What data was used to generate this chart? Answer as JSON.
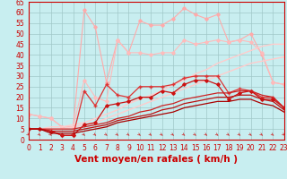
{
  "xlabel": "Vent moyen/en rafales ( km/h )",
  "background_color": "#c8eef0",
  "grid_color": "#a0c8c8",
  "x_ticks": [
    0,
    1,
    2,
    3,
    4,
    5,
    6,
    7,
    8,
    9,
    10,
    11,
    12,
    13,
    14,
    15,
    16,
    17,
    18,
    19,
    20,
    21,
    22,
    23
  ],
  "y_ticks": [
    0,
    5,
    10,
    15,
    20,
    25,
    30,
    35,
    40,
    45,
    50,
    55,
    60,
    65
  ],
  "ylim": [
    0,
    65
  ],
  "xlim": [
    0,
    23
  ],
  "series": [
    {
      "color": "#ffaaaa",
      "lw": 0.8,
      "marker": "D",
      "markersize": 1.8,
      "values": [
        12,
        11,
        10,
        6,
        6,
        61,
        53,
        27,
        47,
        41,
        56,
        54,
        54,
        57,
        62,
        59,
        57,
        59,
        46,
        47,
        50,
        40,
        27,
        26
      ]
    },
    {
      "color": "#ffbbbb",
      "lw": 0.8,
      "marker": "D",
      "markersize": 1.8,
      "values": [
        12,
        11,
        10,
        6,
        6,
        28,
        20,
        18,
        47,
        41,
        41,
        40,
        41,
        41,
        47,
        45,
        46,
        47,
        46,
        47,
        46,
        41,
        27,
        26
      ]
    },
    {
      "color": "#ffcccc",
      "lw": 1.0,
      "marker": null,
      "markersize": 0,
      "values": [
        5,
        5,
        6,
        6,
        7,
        8,
        10,
        12,
        14,
        17,
        19,
        21,
        23,
        26,
        28,
        31,
        33,
        36,
        38,
        40,
        42,
        44,
        45,
        45
      ]
    },
    {
      "color": "#ffcccc",
      "lw": 1.0,
      "marker": null,
      "markersize": 0,
      "values": [
        5,
        5,
        5,
        5,
        6,
        7,
        8,
        10,
        12,
        14,
        16,
        18,
        20,
        22,
        24,
        26,
        28,
        30,
        32,
        34,
        36,
        37,
        38,
        39
      ]
    },
    {
      "color": "#dd3333",
      "lw": 0.9,
      "marker": "+",
      "markersize": 3,
      "values": [
        5,
        5,
        4,
        2,
        2,
        23,
        16,
        26,
        21,
        20,
        25,
        25,
        25,
        26,
        29,
        30,
        30,
        30,
        22,
        24,
        23,
        20,
        20,
        15
      ]
    },
    {
      "color": "#cc1111",
      "lw": 0.9,
      "marker": "D",
      "markersize": 1.8,
      "values": [
        5,
        5,
        4,
        2,
        2,
        7,
        8,
        16,
        17,
        18,
        20,
        20,
        23,
        22,
        26,
        28,
        28,
        26,
        19,
        22,
        23,
        19,
        19,
        15
      ]
    },
    {
      "color": "#cc2222",
      "lw": 0.9,
      "marker": null,
      "markersize": 0,
      "values": [
        5,
        5,
        5,
        5,
        5,
        6,
        7,
        8,
        10,
        11,
        13,
        14,
        16,
        17,
        19,
        20,
        21,
        22,
        22,
        23,
        23,
        21,
        20,
        15
      ]
    },
    {
      "color": "#bb1111",
      "lw": 0.9,
      "marker": null,
      "markersize": 0,
      "values": [
        5,
        5,
        4,
        4,
        4,
        5,
        6,
        7,
        9,
        10,
        11,
        12,
        14,
        15,
        17,
        18,
        19,
        20,
        20,
        21,
        21,
        19,
        18,
        14
      ]
    },
    {
      "color": "#aa0000",
      "lw": 0.9,
      "marker": null,
      "markersize": 0,
      "values": [
        5,
        5,
        3,
        3,
        3,
        4,
        5,
        6,
        8,
        9,
        10,
        11,
        12,
        13,
        15,
        16,
        17,
        18,
        18,
        19,
        19,
        17,
        16,
        13
      ]
    }
  ],
  "tick_label_fontsize": 5.5,
  "xlabel_fontsize": 7.5,
  "xlabel_color": "#cc0000"
}
